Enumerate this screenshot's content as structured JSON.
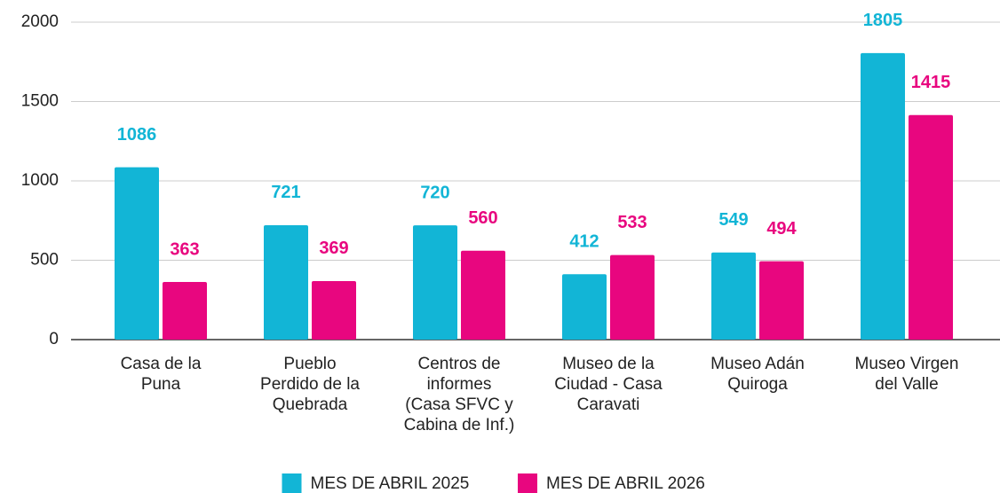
{
  "chart_data": {
    "type": "bar",
    "categories": [
      [
        "Casa de la",
        "Puna"
      ],
      [
        "Pueblo",
        "Perdido de la",
        "Quebrada"
      ],
      [
        "Centros de",
        "informes",
        "(Casa SFVC y",
        "Cabina de Inf.)"
      ],
      [
        "Museo de la",
        "Ciudad - Casa",
        "Caravati"
      ],
      [
        "Museo Adán",
        "Quiroga"
      ],
      [
        "Museo Virgen",
        "del Valle"
      ]
    ],
    "series": [
      {
        "name": "MES DE ABRIL 2025",
        "color": "#12b5d6",
        "values": [
          1086,
          721,
          720,
          412,
          549,
          1805
        ]
      },
      {
        "name": "MES DE ABRIL 2026",
        "color": "#e8067f",
        "values": [
          363,
          369,
          560,
          533,
          494,
          1415
        ]
      }
    ],
    "ylim": [
      0,
      2000
    ],
    "yticks": [
      0,
      500,
      1000,
      1500,
      2000
    ],
    "grid": true,
    "legend": "bottom"
  }
}
